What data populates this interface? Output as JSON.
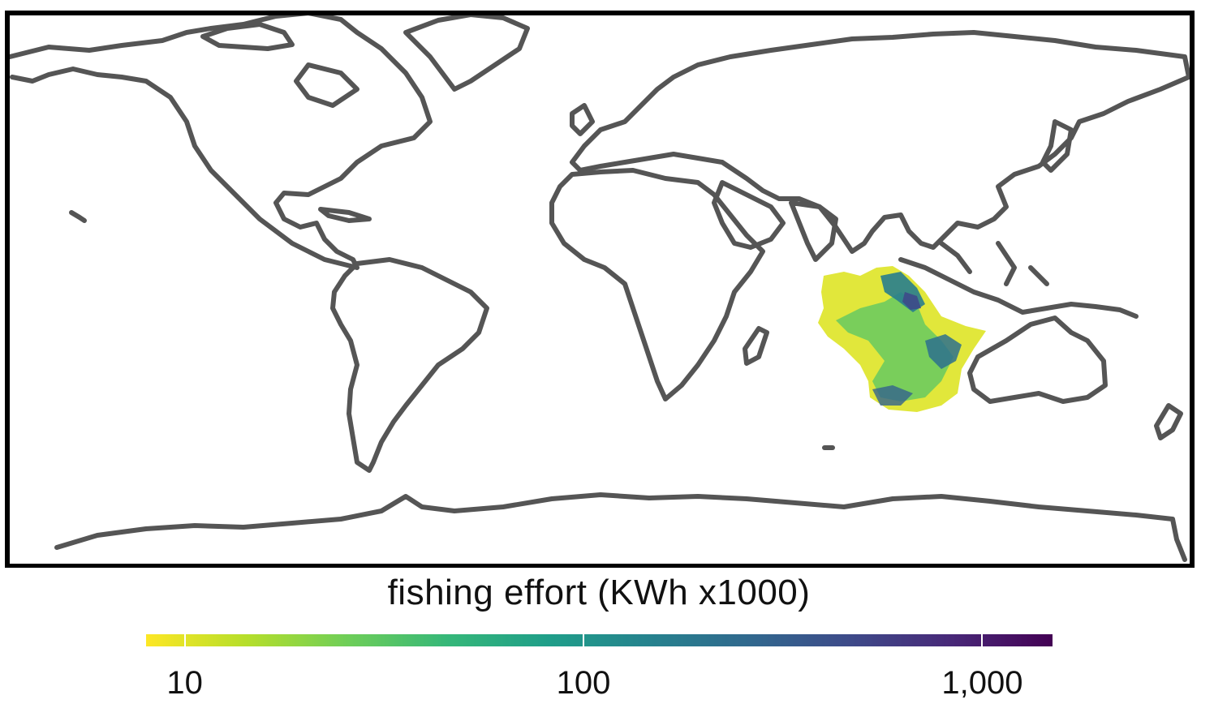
{
  "legend": {
    "title": "fishing effort (KWh x1000)",
    "scale": "log10",
    "ticks": [
      {
        "label": "10",
        "value": 10
      },
      {
        "label": "100",
        "value": 100
      },
      {
        "label": "1,000",
        "value": 1000
      }
    ],
    "range": [
      8,
      1500
    ],
    "palette": "viridis-reversed",
    "colors": [
      "#FDE725",
      "#B5DE2B",
      "#6ECE58",
      "#35B779",
      "#1F9E89",
      "#26828E",
      "#31688E",
      "#3E4A89",
      "#482878",
      "#440154"
    ]
  },
  "map": {
    "region_with_data": "Indian Ocean",
    "coastline_color": "#555555",
    "frame_color": "#000000"
  }
}
